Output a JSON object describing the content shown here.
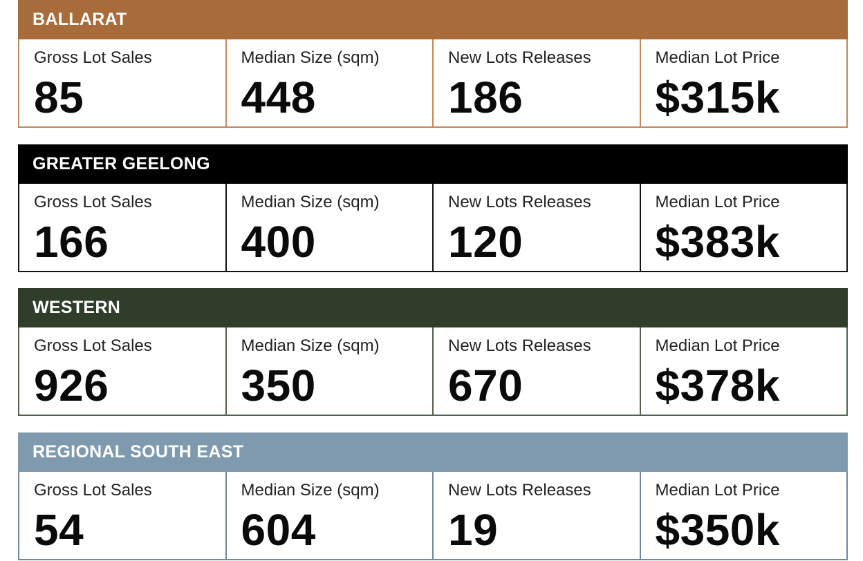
{
  "labels": {
    "gross_lot_sales": "Gross Lot Sales",
    "median_size": "Median Size (sqm)",
    "new_lots_releases": "New Lots Releases",
    "median_lot_price": "Median Lot Price"
  },
  "colors": {
    "ballarat": "#a86b3a",
    "greater_geelong": "#000000",
    "western": "#2e3e2b",
    "regional_south_east": "#7f9aaf"
  },
  "regions": [
    {
      "name": "BALLARAT",
      "gross_lot_sales": "85",
      "median_size": "448",
      "new_lots_releases": "186",
      "median_lot_price": "$315k"
    },
    {
      "name": "GREATER GEELONG",
      "gross_lot_sales": "166",
      "median_size": "400",
      "new_lots_releases": "120",
      "median_lot_price": "$383k"
    },
    {
      "name": "WESTERN",
      "gross_lot_sales": "926",
      "median_size": "350",
      "new_lots_releases": "670",
      "median_lot_price": "$378k"
    },
    {
      "name": "REGIONAL SOUTH EAST",
      "gross_lot_sales": "54",
      "median_size": "604",
      "new_lots_releases": "19",
      "median_lot_price": "$350k"
    }
  ]
}
